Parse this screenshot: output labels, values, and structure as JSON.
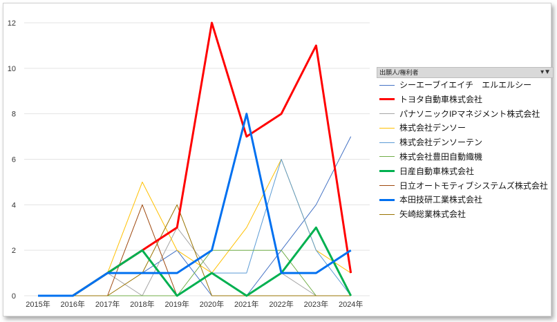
{
  "legend": {
    "header": "出願人/権利者",
    "filter_icon": "filter-dropdown-icon"
  },
  "chart_data": {
    "type": "line",
    "x": [
      "2015年",
      "2016年",
      "2017年",
      "2018年",
      "2019年",
      "2020年",
      "2021年",
      "2022年",
      "2023年",
      "2024年"
    ],
    "ylim": [
      0,
      12
    ],
    "yticks": [
      0,
      2,
      4,
      6,
      8,
      10,
      12
    ],
    "grid": true,
    "legend_position": "right",
    "series": [
      {
        "name": "シーエーブイエイチ　エルエルシー",
        "color": "#4472c4",
        "width": 1,
        "values": [
          0,
          0,
          1,
          1,
          2,
          0,
          0,
          2,
          4,
          7
        ]
      },
      {
        "name": "トヨタ自動車株式会社",
        "color": "#ff0000",
        "width": 3,
        "values": [
          0,
          0,
          1,
          2,
          3,
          12,
          7,
          8,
          11,
          1
        ]
      },
      {
        "name": "パナソニックIPマネジメント株式会社",
        "color": "#a5a5a5",
        "width": 1,
        "values": [
          0,
          0,
          1,
          0,
          3,
          1,
          0,
          1,
          0,
          0
        ]
      },
      {
        "name": "株式会社デンソー",
        "color": "#ffc000",
        "width": 1,
        "values": [
          0,
          0,
          1,
          5,
          2,
          1,
          3,
          6,
          2,
          1
        ]
      },
      {
        "name": "株式会社デンソーテン",
        "color": "#5b9bd5",
        "width": 1,
        "values": [
          0,
          0,
          0,
          0,
          0,
          1,
          1,
          6,
          2,
          0
        ]
      },
      {
        "name": "株式会社豊田自動織機",
        "color": "#70ad47",
        "width": 1,
        "values": [
          0,
          0,
          0,
          0,
          0,
          2,
          2,
          2,
          0,
          0
        ]
      },
      {
        "name": "日産自動車株式会社",
        "color": "#00b050",
        "width": 3,
        "values": [
          0,
          0,
          1,
          2,
          0,
          1,
          0,
          1,
          3,
          0
        ]
      },
      {
        "name": "日立オートモティブシステムズ株式会社",
        "color": "#9e480e",
        "width": 1,
        "values": [
          0,
          0,
          0,
          4,
          0,
          1,
          0,
          0,
          0,
          0
        ]
      },
      {
        "name": "本田技研工業株式会社",
        "color": "#0070f0",
        "width": 3,
        "values": [
          0,
          0,
          1,
          1,
          1,
          2,
          8,
          1,
          1,
          2
        ]
      },
      {
        "name": "矢崎総業株式会社",
        "color": "#997300",
        "width": 1,
        "values": [
          0,
          0,
          0,
          1,
          4,
          0,
          0,
          0,
          0,
          0
        ]
      }
    ]
  }
}
